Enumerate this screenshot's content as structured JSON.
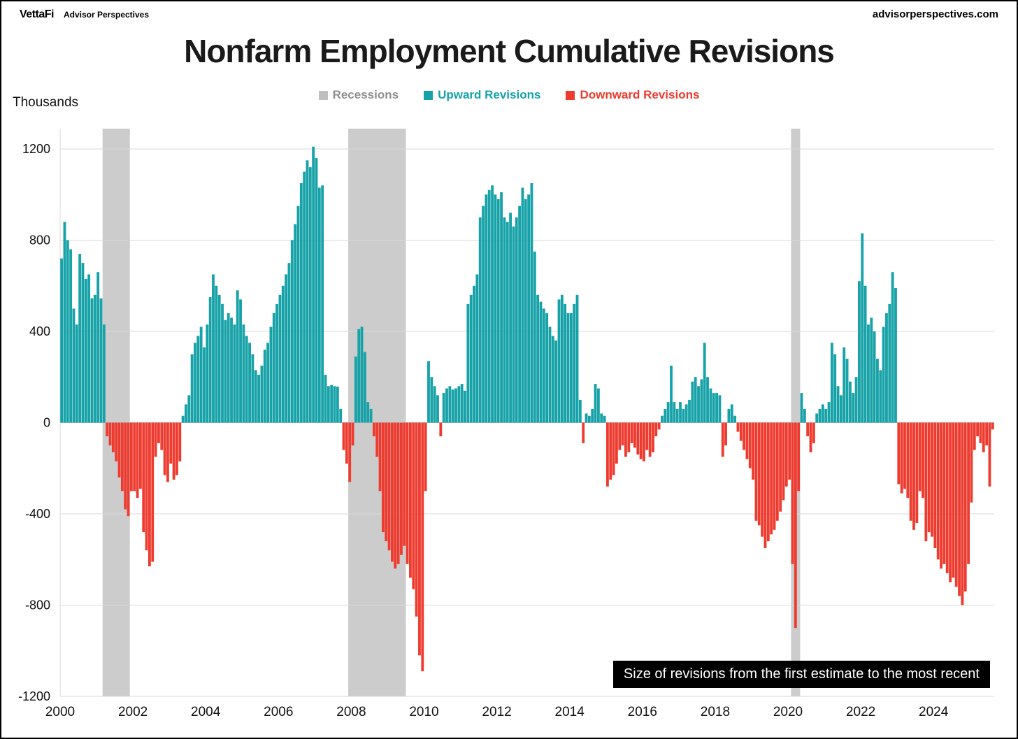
{
  "header": {
    "brand": "VettaFi",
    "subtitle": "Advisor Perspectives",
    "site": "advisorperspectives.com"
  },
  "chart_data": {
    "type": "bar",
    "title": "Nonfarm Employment Cumulative Revisions",
    "ylabel": "Thousands",
    "annotation": "Size of revisions from the first estimate to the most recent",
    "legend": [
      {
        "label": "Recessions",
        "color": "#BFBFBF",
        "text_color": "#8F8F8F"
      },
      {
        "label": "Upward Revisions",
        "color": "#17A2A8",
        "text_color": "#17A2A8"
      },
      {
        "label": "Downward Revisions",
        "color": "#EE3B2F",
        "text_color": "#EE3B2F"
      }
    ],
    "start": "2000-01",
    "frequency": "monthly",
    "ylim": [
      -1200,
      1200
    ],
    "yticks": [
      -1200,
      -800,
      -400,
      0,
      400,
      800,
      1200
    ],
    "xticks": [
      2000,
      2002,
      2004,
      2006,
      2008,
      2010,
      2012,
      2014,
      2016,
      2018,
      2020,
      2022,
      2024
    ],
    "up_color": "#17A2A8",
    "down_color": "#EE3B2F",
    "recession_color": "#CCCCCC",
    "recessions": [
      {
        "start_month": 14,
        "end_month": 23
      },
      {
        "start_month": 95,
        "end_month": 114
      },
      {
        "start_month": 241,
        "end_month": 244
      }
    ],
    "values": [
      720,
      880,
      800,
      760,
      500,
      430,
      740,
      700,
      630,
      650,
      545,
      560,
      660,
      545,
      430,
      -60,
      -100,
      -130,
      -170,
      -240,
      -300,
      -380,
      -410,
      -300,
      -300,
      -330,
      -290,
      -480,
      -560,
      -630,
      -610,
      -150,
      -90,
      -120,
      -230,
      -260,
      -180,
      -250,
      -230,
      -170,
      30,
      80,
      120,
      300,
      350,
      380,
      420,
      330,
      430,
      550,
      650,
      600,
      560,
      520,
      450,
      480,
      460,
      430,
      580,
      540,
      430,
      380,
      350,
      300,
      230,
      210,
      250,
      320,
      350,
      420,
      480,
      520,
      560,
      600,
      650,
      700,
      800,
      870,
      950,
      1050,
      1100,
      1150,
      1120,
      1210,
      1160,
      1030,
      1040,
      210,
      160,
      165,
      160,
      158,
      60,
      -120,
      -180,
      -260,
      -100,
      290,
      410,
      420,
      310,
      90,
      60,
      -60,
      -150,
      -300,
      -480,
      -520,
      -560,
      -610,
      -640,
      -620,
      -580,
      -540,
      -620,
      -680,
      -730,
      -850,
      -1020,
      -1090,
      -300,
      270,
      200,
      160,
      120,
      -60,
      130,
      150,
      160,
      145,
      150,
      160,
      170,
      140,
      520,
      560,
      600,
      650,
      900,
      950,
      1000,
      1020,
      1040,
      1000,
      980,
      1010,
      900,
      880,
      920,
      860,
      900,
      950,
      1030,
      980,
      1000,
      1050,
      750,
      560,
      530,
      500,
      480,
      420,
      380,
      360,
      540,
      560,
      520,
      480,
      480,
      520,
      560,
      100,
      -90,
      40,
      30,
      60,
      170,
      150,
      40,
      30,
      -280,
      -250,
      -230,
      -180,
      -120,
      -100,
      -150,
      -130,
      -90,
      -110,
      -140,
      -160,
      -170,
      -120,
      -150,
      -130,
      -60,
      -30,
      30,
      60,
      90,
      250,
      90,
      60,
      90,
      60,
      80,
      100,
      180,
      200,
      160,
      190,
      350,
      200,
      150,
      130,
      130,
      120,
      -150,
      -100,
      60,
      80,
      30,
      -40,
      -80,
      -120,
      -160,
      -200,
      -250,
      -430,
      -450,
      -500,
      -550,
      -520,
      -490,
      -470,
      -430,
      -390,
      -340,
      -280,
      -250,
      -620,
      -900,
      -300,
      130,
      60,
      -60,
      -130,
      -90,
      40,
      60,
      80,
      60,
      90,
      350,
      300,
      160,
      120,
      330,
      280,
      180,
      130,
      200,
      620,
      830,
      600,
      430,
      460,
      400,
      280,
      230,
      420,
      480,
      520,
      660,
      590,
      -270,
      -310,
      -290,
      -330,
      -430,
      -470,
      -440,
      -300,
      -330,
      -520,
      -480,
      -500,
      -550,
      -600,
      -640,
      -620,
      -660,
      -700,
      -680,
      -720,
      -760,
      -800,
      -740,
      -620,
      -350,
      -120,
      -60,
      -90,
      -130,
      -100,
      -280,
      -30
    ]
  }
}
